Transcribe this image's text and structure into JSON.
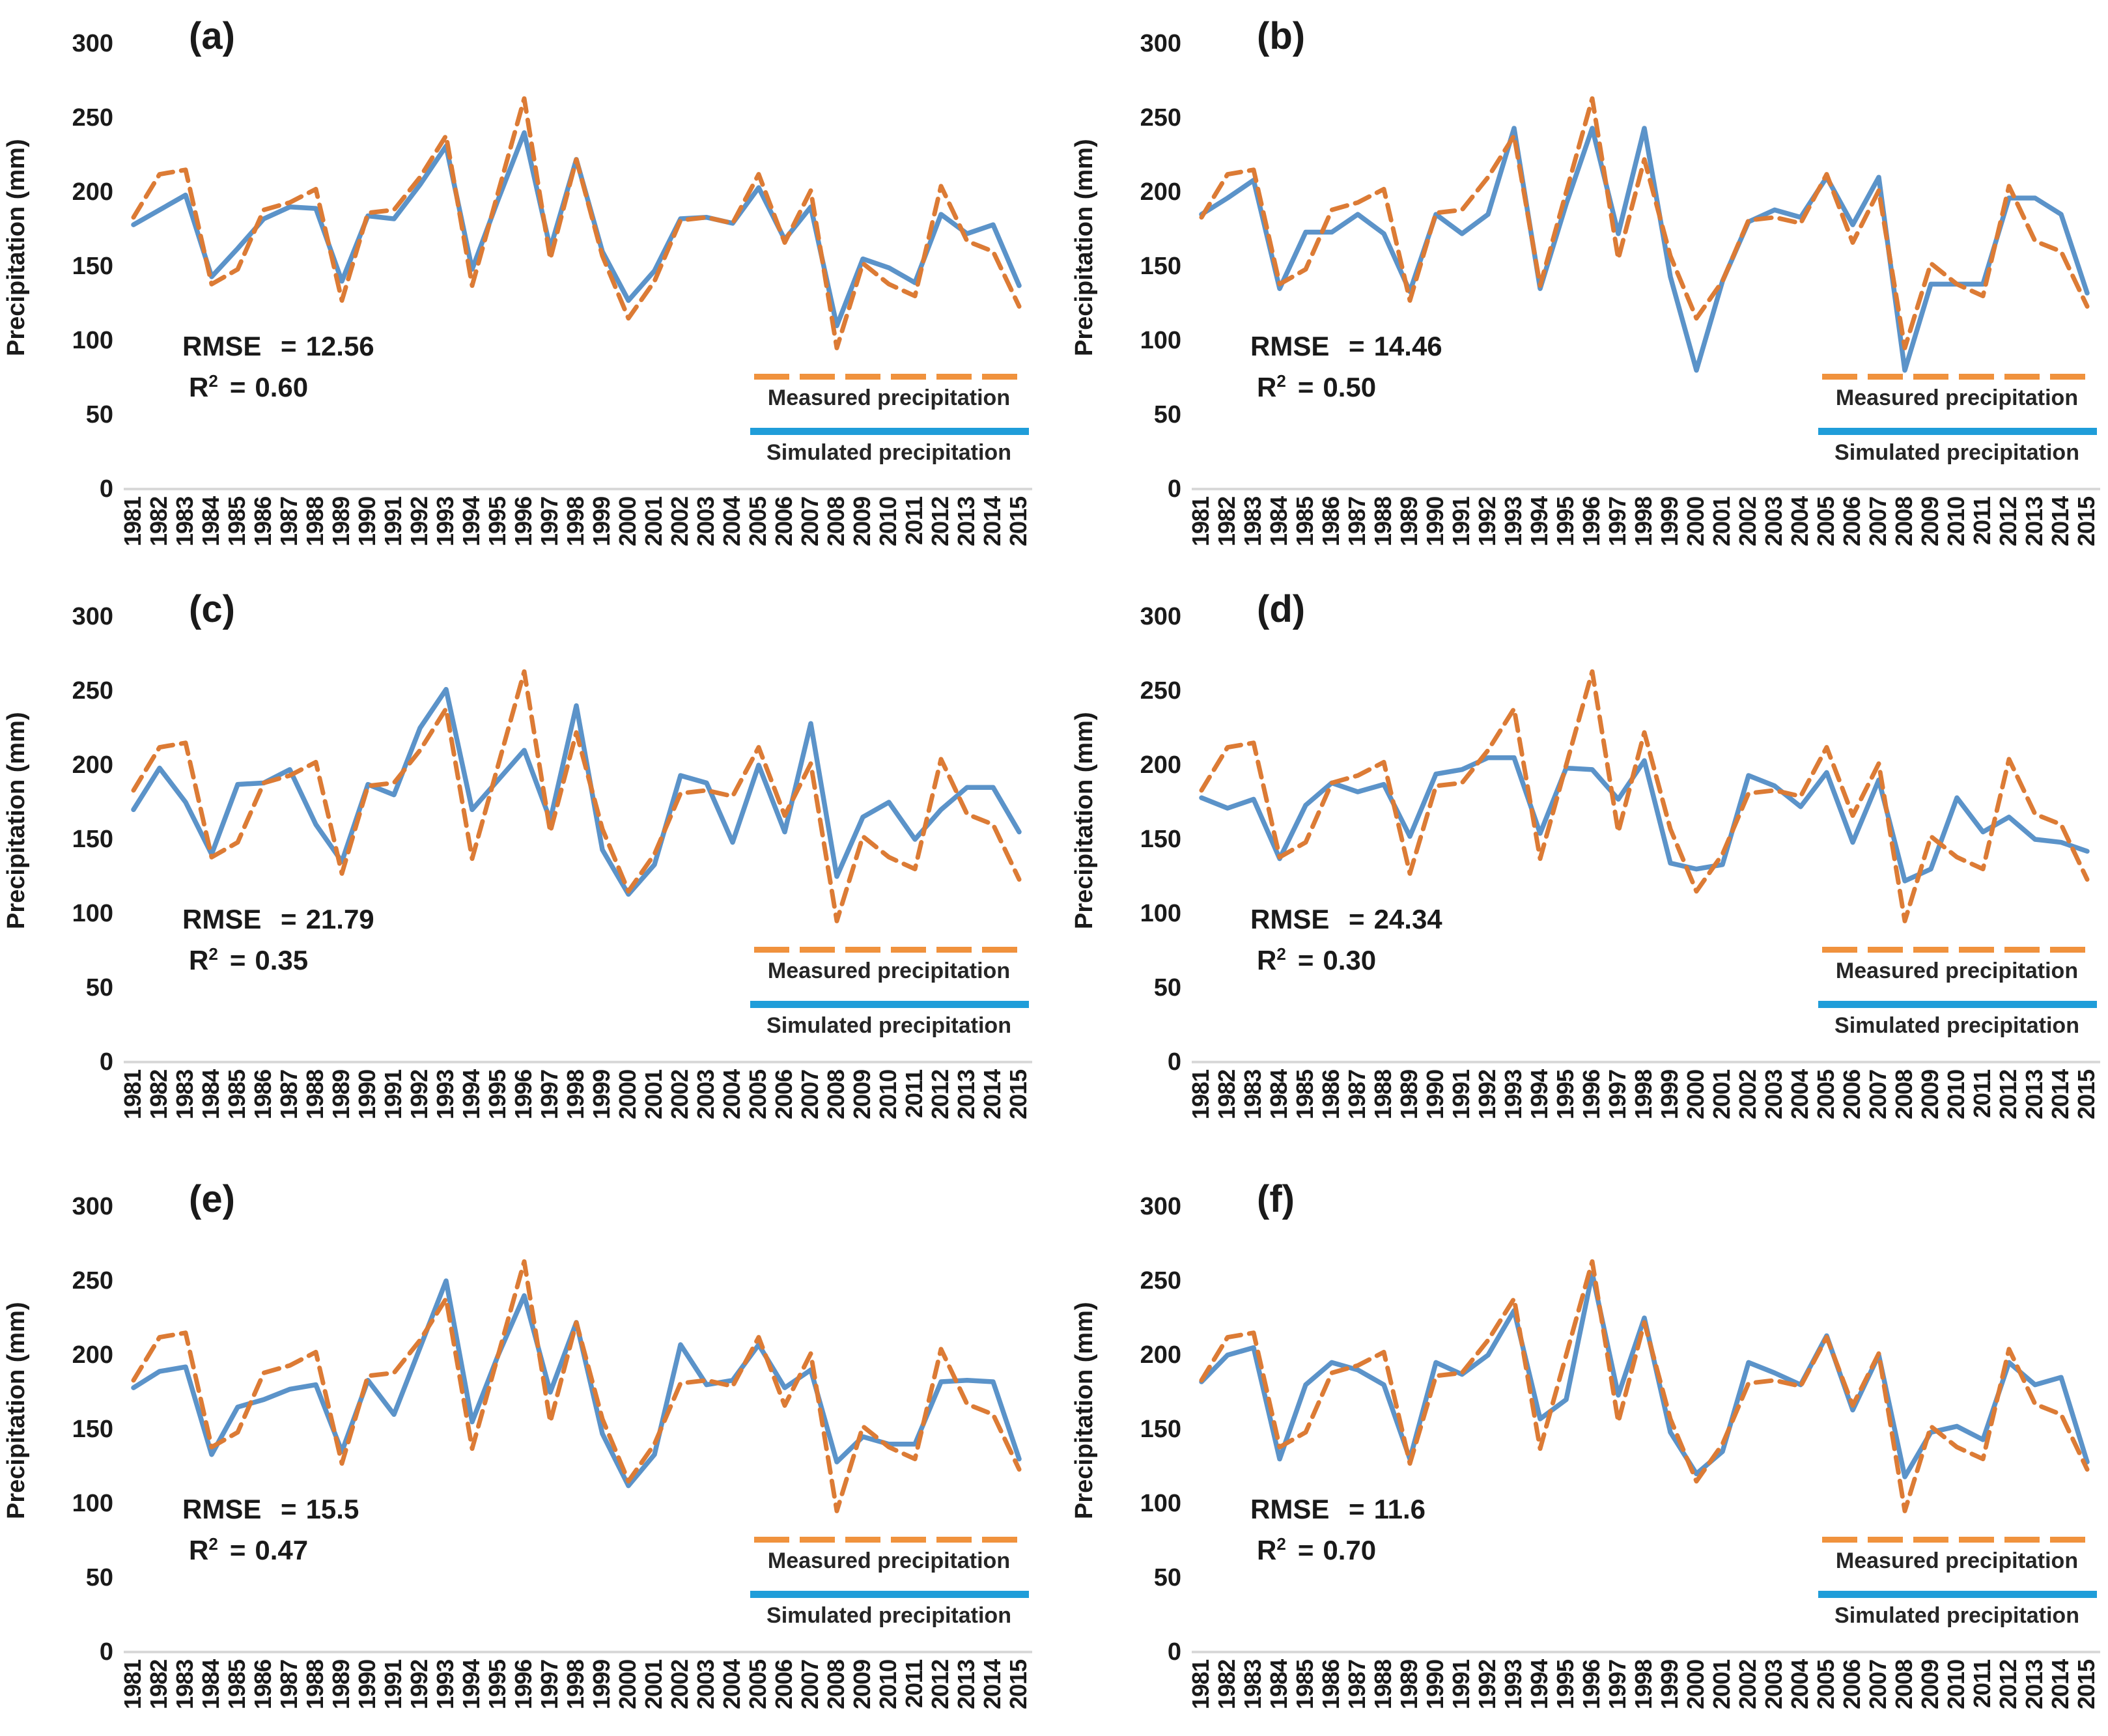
{
  "colors": {
    "measured": "#DC7B35",
    "simulated": "#5B93C9",
    "legend_measured": "#F0923D",
    "legend_simulated": "#1F9DD9",
    "axis_line": "#D9D9D9",
    "text": "#1A1A1A"
  },
  "stats_labels": {
    "rmse": "RMSE",
    "eq": "=",
    "r": "R",
    "sup": "2"
  },
  "chart_data": {
    "type": "line",
    "title": "",
    "xlabel": "",
    "ylabel": "Precipitation (mm)",
    "ylim": [
      0,
      300
    ],
    "y_ticks": [
      300,
      250,
      200,
      150,
      100,
      50,
      0
    ],
    "grid": false,
    "legend_position": "lower-right-inside",
    "x": [
      1981,
      1982,
      1983,
      1984,
      1985,
      1986,
      1987,
      1988,
      1989,
      1990,
      1991,
      1992,
      1993,
      1994,
      1995,
      1996,
      1997,
      1998,
      1999,
      2000,
      2001,
      2002,
      2003,
      2004,
      2005,
      2006,
      2007,
      2008,
      2009,
      2010,
      2011,
      2012,
      2013,
      2014,
      2015
    ],
    "legend": {
      "measured": "Measured precipitation",
      "simulated": "Simulated precipitation"
    },
    "measured": {
      "name": "Measured precipitation",
      "style": "dashed",
      "values": [
        183,
        212,
        215,
        138,
        148,
        188,
        193,
        202,
        127,
        186,
        188,
        210,
        238,
        137,
        200,
        263,
        155,
        222,
        157,
        115,
        140,
        181,
        183,
        179,
        212,
        166,
        201,
        95,
        152,
        138,
        130,
        204,
        167,
        160,
        123
      ]
    },
    "panels": [
      {
        "label": "(a)",
        "rmse": "12.56",
        "r2": "0.60",
        "simulated": {
          "name": "Simulated precipitation",
          "values": [
            178,
            188,
            198,
            143,
            162,
            182,
            190,
            189,
            140,
            184,
            182,
            205,
            231,
            148,
            195,
            240,
            162,
            222,
            160,
            127,
            147,
            182,
            183,
            179,
            203,
            168,
            190,
            110,
            155,
            149,
            139,
            185,
            172,
            178,
            137
          ]
        }
      },
      {
        "label": "(b)",
        "rmse": "14.46",
        "r2": "0.50",
        "simulated": {
          "name": "Simulated precipitation",
          "values": [
            185,
            196,
            208,
            135,
            173,
            173,
            185,
            172,
            133,
            185,
            172,
            185,
            243,
            135,
            192,
            243,
            172,
            243,
            143,
            80,
            140,
            180,
            188,
            183,
            210,
            178,
            210,
            80,
            138,
            138,
            138,
            196,
            196,
            185,
            132
          ]
        }
      },
      {
        "label": "(c)",
        "rmse": "21.79",
        "r2": "0.35",
        "simulated": {
          "name": "Simulated precipitation",
          "values": [
            170,
            198,
            175,
            140,
            187,
            188,
            197,
            160,
            135,
            187,
            180,
            225,
            251,
            170,
            190,
            210,
            163,
            240,
            143,
            113,
            133,
            193,
            188,
            148,
            200,
            155,
            228,
            125,
            165,
            175,
            150,
            170,
            185,
            185,
            155
          ]
        }
      },
      {
        "label": "(d)",
        "rmse": "24.34",
        "r2": "0.30",
        "simulated": {
          "name": "Simulated precipitation",
          "values": [
            178,
            171,
            177,
            137,
            173,
            188,
            182,
            187,
            152,
            194,
            197,
            205,
            205,
            154,
            198,
            197,
            177,
            203,
            134,
            130,
            133,
            193,
            186,
            172,
            195,
            148,
            190,
            122,
            130,
            178,
            155,
            165,
            150,
            148,
            142
          ]
        }
      },
      {
        "label": "(e)",
        "rmse": "15.5",
        "r2": "0.47",
        "simulated": {
          "name": "Simulated precipitation",
          "values": [
            178,
            189,
            192,
            133,
            165,
            170,
            177,
            180,
            135,
            183,
            160,
            205,
            250,
            155,
            200,
            240,
            175,
            222,
            147,
            112,
            133,
            207,
            180,
            183,
            207,
            178,
            190,
            128,
            145,
            140,
            140,
            182,
            183,
            182,
            130
          ]
        }
      },
      {
        "label": "(f)",
        "rmse": "11.6",
        "r2": "0.70",
        "simulated": {
          "name": "Simulated precipitation",
          "values": [
            182,
            200,
            205,
            130,
            180,
            195,
            190,
            180,
            130,
            195,
            187,
            200,
            230,
            157,
            170,
            255,
            173,
            225,
            148,
            120,
            135,
            195,
            188,
            180,
            213,
            163,
            200,
            118,
            148,
            152,
            143,
            195,
            180,
            185,
            128
          ]
        }
      }
    ]
  }
}
